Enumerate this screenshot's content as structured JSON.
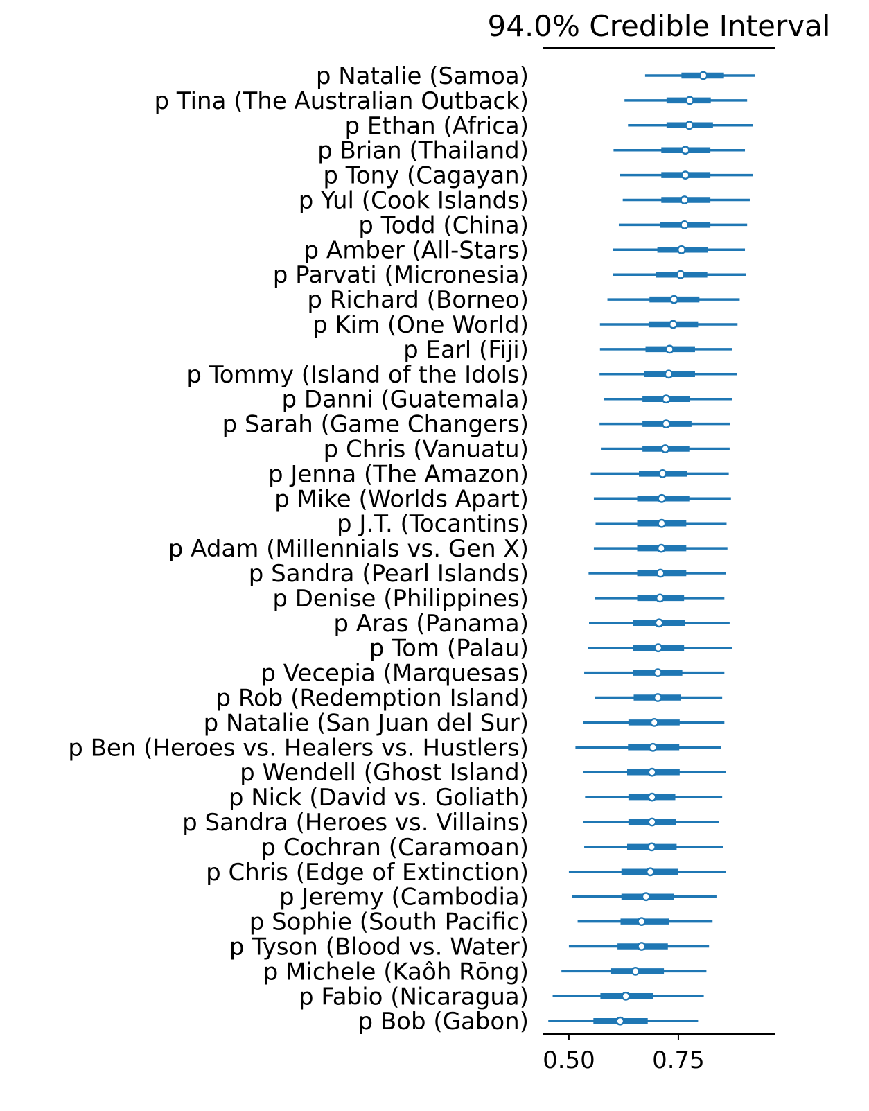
{
  "chart_data": {
    "type": "forest",
    "title": "94.0% Credible Interval",
    "xlabel": "",
    "ylabel": "",
    "xlim": [
      0.44,
      0.97
    ],
    "x_ticks": [
      0.5,
      0.75
    ],
    "x_tick_labels": [
      "0.50",
      "0.75"
    ],
    "grid": false,
    "legend": "none",
    "colors": {
      "interval": "#1f77b4",
      "point_fill": "#ffffff",
      "point_stroke": "#1f77b4",
      "axis": "#000000",
      "text": "#000000"
    },
    "series": [
      {
        "label": "p Natalie (Samoa)",
        "hdi_low": 0.674,
        "q25": 0.757,
        "median": 0.807,
        "q75": 0.854,
        "hdi_high": 0.925
      },
      {
        "label": "p Tina (The Australian Outback)",
        "hdi_low": 0.627,
        "q25": 0.723,
        "median": 0.776,
        "q75": 0.824,
        "hdi_high": 0.907
      },
      {
        "label": "p Ethan (Africa)",
        "hdi_low": 0.635,
        "q25": 0.723,
        "median": 0.775,
        "q75": 0.829,
        "hdi_high": 0.92
      },
      {
        "label": "p Brian (Thailand)",
        "hdi_low": 0.602,
        "q25": 0.711,
        "median": 0.766,
        "q75": 0.823,
        "hdi_high": 0.902
      },
      {
        "label": "p Tony (Cagayan)",
        "hdi_low": 0.616,
        "q25": 0.711,
        "median": 0.766,
        "q75": 0.823,
        "hdi_high": 0.92
      },
      {
        "label": "p Yul (Cook Islands)",
        "hdi_low": 0.623,
        "q25": 0.711,
        "median": 0.764,
        "q75": 0.823,
        "hdi_high": 0.913
      },
      {
        "label": "p Todd (China)",
        "hdi_low": 0.614,
        "q25": 0.709,
        "median": 0.764,
        "q75": 0.823,
        "hdi_high": 0.907
      },
      {
        "label": "p Amber (All-Stars)",
        "hdi_low": 0.601,
        "q25": 0.702,
        "median": 0.757,
        "q75": 0.818,
        "hdi_high": 0.902
      },
      {
        "label": "p Parvati (Micronesia)",
        "hdi_low": 0.6,
        "q25": 0.699,
        "median": 0.755,
        "q75": 0.816,
        "hdi_high": 0.904
      },
      {
        "label": "p Richard (Borneo)",
        "hdi_low": 0.588,
        "q25": 0.684,
        "median": 0.74,
        "q75": 0.798,
        "hdi_high": 0.89
      },
      {
        "label": "p Kim (One World)",
        "hdi_low": 0.571,
        "q25": 0.682,
        "median": 0.738,
        "q75": 0.795,
        "hdi_high": 0.885
      },
      {
        "label": "p Earl (Fiji)",
        "hdi_low": 0.571,
        "q25": 0.675,
        "median": 0.73,
        "q75": 0.788,
        "hdi_high": 0.873
      },
      {
        "label": "p Tommy (Island of the Idols)",
        "hdi_low": 0.57,
        "q25": 0.672,
        "median": 0.728,
        "q75": 0.788,
        "hdi_high": 0.883
      },
      {
        "label": "p Danni (Guatemala)",
        "hdi_low": 0.58,
        "q25": 0.668,
        "median": 0.722,
        "q75": 0.777,
        "hdi_high": 0.873
      },
      {
        "label": "p Sarah (Game Changers)",
        "hdi_low": 0.57,
        "q25": 0.668,
        "median": 0.722,
        "q75": 0.78,
        "hdi_high": 0.868
      },
      {
        "label": "p Chris (Vanuatu)",
        "hdi_low": 0.573,
        "q25": 0.668,
        "median": 0.72,
        "q75": 0.775,
        "hdi_high": 0.867
      },
      {
        "label": "p Jenna (The Amazon)",
        "hdi_low": 0.55,
        "q25": 0.66,
        "median": 0.714,
        "q75": 0.77,
        "hdi_high": 0.865
      },
      {
        "label": "p Mike (Worlds Apart)",
        "hdi_low": 0.557,
        "q25": 0.656,
        "median": 0.712,
        "q75": 0.775,
        "hdi_high": 0.87
      },
      {
        "label": "p J.T. (Tocantins)",
        "hdi_low": 0.561,
        "q25": 0.656,
        "median": 0.712,
        "q75": 0.768,
        "hdi_high": 0.86
      },
      {
        "label": "p Adam (Millennials vs. Gen X)",
        "hdi_low": 0.557,
        "q25": 0.656,
        "median": 0.711,
        "q75": 0.768,
        "hdi_high": 0.862
      },
      {
        "label": "p Sandra (Pearl Islands)",
        "hdi_low": 0.545,
        "q25": 0.656,
        "median": 0.709,
        "q75": 0.768,
        "hdi_high": 0.858
      },
      {
        "label": "p Denise (Philippines)",
        "hdi_low": 0.56,
        "q25": 0.656,
        "median": 0.708,
        "q75": 0.763,
        "hdi_high": 0.855
      },
      {
        "label": "p Aras (Panama)",
        "hdi_low": 0.546,
        "q25": 0.647,
        "median": 0.706,
        "q75": 0.765,
        "hdi_high": 0.867
      },
      {
        "label": "p Tom (Palau)",
        "hdi_low": 0.544,
        "q25": 0.647,
        "median": 0.704,
        "q75": 0.763,
        "hdi_high": 0.873
      },
      {
        "label": "p Vecepia (Marquesas)",
        "hdi_low": 0.535,
        "q25": 0.647,
        "median": 0.703,
        "q75": 0.759,
        "hdi_high": 0.855
      },
      {
        "label": "p Rob (Redemption Island)",
        "hdi_low": 0.56,
        "q25": 0.648,
        "median": 0.703,
        "q75": 0.756,
        "hdi_high": 0.85
      },
      {
        "label": "p Natalie (San Juan del Sur)",
        "hdi_low": 0.532,
        "q25": 0.636,
        "median": 0.695,
        "q75": 0.753,
        "hdi_high": 0.855
      },
      {
        "label": "p Ben (Heroes vs. Healers vs. Hustlers)",
        "hdi_low": 0.515,
        "q25": 0.635,
        "median": 0.692,
        "q75": 0.752,
        "hdi_high": 0.847
      },
      {
        "label": "p Wendell (Ghost Island)",
        "hdi_low": 0.532,
        "q25": 0.633,
        "median": 0.69,
        "q75": 0.753,
        "hdi_high": 0.858
      },
      {
        "label": "p Nick (David vs. Goliath)",
        "hdi_low": 0.537,
        "q25": 0.636,
        "median": 0.69,
        "q75": 0.743,
        "hdi_high": 0.85
      },
      {
        "label": "p Sandra (Heroes vs. Villains)",
        "hdi_low": 0.532,
        "q25": 0.636,
        "median": 0.69,
        "q75": 0.745,
        "hdi_high": 0.842
      },
      {
        "label": "p Cochran (Caramoan)",
        "hdi_low": 0.535,
        "q25": 0.633,
        "median": 0.689,
        "q75": 0.746,
        "hdi_high": 0.852
      },
      {
        "label": "p Chris (Edge of Extinction)",
        "hdi_low": 0.5,
        "q25": 0.62,
        "median": 0.686,
        "q75": 0.75,
        "hdi_high": 0.858
      },
      {
        "label": "p Jeremy (Cambodia)",
        "hdi_low": 0.507,
        "q25": 0.62,
        "median": 0.676,
        "q75": 0.74,
        "hdi_high": 0.837
      },
      {
        "label": "p Sophie (South Pacific)",
        "hdi_low": 0.52,
        "q25": 0.618,
        "median": 0.666,
        "q75": 0.728,
        "hdi_high": 0.828
      },
      {
        "label": "p Tyson (Blood  vs.  Water)",
        "hdi_low": 0.5,
        "q25": 0.611,
        "median": 0.666,
        "q75": 0.726,
        "hdi_high": 0.82
      },
      {
        "label": "p Michele (Kaôh Rōng)",
        "hdi_low": 0.483,
        "q25": 0.595,
        "median": 0.652,
        "q75": 0.717,
        "hdi_high": 0.814
      },
      {
        "label": "p Fabio (Nicaragua)",
        "hdi_low": 0.463,
        "q25": 0.572,
        "median": 0.63,
        "q75": 0.692,
        "hdi_high": 0.808
      },
      {
        "label": "p Bob (Gabon)",
        "hdi_low": 0.453,
        "q25": 0.556,
        "median": 0.617,
        "q75": 0.68,
        "hdi_high": 0.795
      }
    ]
  }
}
